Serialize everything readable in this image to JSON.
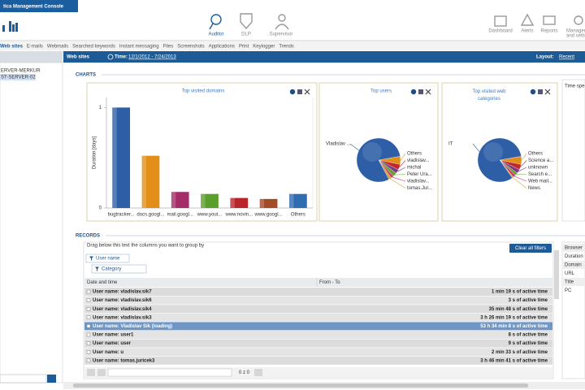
{
  "window_title": "tica Management Console",
  "nav": {
    "center": [
      "Auditor",
      "DLP",
      "Supervisor"
    ],
    "right": [
      "Dashboard",
      "Alerts",
      "Reports"
    ],
    "management": [
      "Managem",
      "and setti"
    ]
  },
  "tabs": [
    "Web sites",
    "E-mails",
    "Webmails",
    "Searched keywords",
    "Instant messaging",
    "Files",
    "Screenshots",
    "Applications",
    "Print",
    "Keylogger",
    "Trends"
  ],
  "tree": [
    "ERVER-MERKUR",
    "ST-SERVER-02"
  ],
  "header": {
    "title": "Web sites",
    "time_label": "Time:",
    "time_range": "12/1/2012 - 7/24/2013",
    "layout_label": "Layout:",
    "layout_value": "Recent"
  },
  "charts_heading": "CHARTS",
  "chart_data": [
    {
      "type": "bar",
      "title": "Top visited domains",
      "y_label": "Duration [days]",
      "categories": [
        "bugtracker...",
        "docs.googl...",
        "mail.googl...",
        "www.yout...",
        "www.novin...",
        "www.googl...",
        "Others"
      ],
      "values": [
        1.0,
        0.52,
        0.16,
        0.14,
        0.1,
        0.09,
        0.14
      ],
      "colors": [
        "#2d5ea6",
        "#e28f1a",
        "#a42c68",
        "#5a9e2c",
        "#b8262c",
        "#a34a26",
        "#2f6db0"
      ],
      "ylim": [
        0,
        1.1
      ],
      "yticks": [
        0,
        1
      ],
      "grid": false
    },
    {
      "type": "pie",
      "title": "Top users",
      "categories": [
        "Vladislav ...",
        "Others",
        "vladislav...",
        "michal",
        "Peter Ura...",
        "vladislav...",
        "tomas.Jur..."
      ],
      "values": [
        80,
        6,
        4,
        3,
        3,
        2,
        2
      ],
      "colors": [
        "#2d5ea6",
        "#e28f1a",
        "#c0282a",
        "#7a3a8a",
        "#6aa030",
        "#c83a6a",
        "#d8a040"
      ]
    },
    {
      "type": "pie",
      "title": "Top visited web categories",
      "categories": [
        "IT",
        "Others",
        "Science a...",
        "unknown",
        "Search e...",
        "Web mail...",
        "News"
      ],
      "values": [
        82,
        6,
        4,
        3,
        2,
        2,
        1
      ],
      "colors": [
        "#2d5ea6",
        "#e28f1a",
        "#c0282a",
        "#7a3a8a",
        "#6aa030",
        "#c83a6a",
        "#d8a040"
      ]
    }
  ],
  "side_panel": "Time spe",
  "records": {
    "heading": "RECORDS",
    "group_hint": "Drag below this text the columns you want to group by",
    "group_chips": [
      "User name",
      "Category"
    ],
    "clear_button": "Clear all filters",
    "columns": [
      "Date and time",
      "From - To"
    ],
    "rows": [
      {
        "label": "User name: vladislav.sik7",
        "time": "1 min 19 s of active time"
      },
      {
        "label": "User name: vladislav.sik6",
        "time": "3 s of active time"
      },
      {
        "label": "User name: vladislav.sik4",
        "time": "35 min 48 s of active time"
      },
      {
        "label": "User name: vladislav.sik3",
        "time": "3 h 26 min 19 s of active time"
      },
      {
        "label": "User name: Vladislav Sik (loading)",
        "time": "53 h 34 min 8 s of active time"
      },
      {
        "label": "User name: user1",
        "time": "8 s of active time"
      },
      {
        "label": "User name: user",
        "time": "9 s of active time"
      },
      {
        "label": "User name: u",
        "time": "2 min 33 s of active time"
      },
      {
        "label": "User name: tomas.juricek3",
        "time": "3 h 46 min 41 s of active time"
      }
    ],
    "selected_row": 4,
    "pager": "0 z 0",
    "fields": [
      "Browser",
      "Duration",
      "Domain",
      "URL",
      "Title",
      "PC"
    ]
  }
}
